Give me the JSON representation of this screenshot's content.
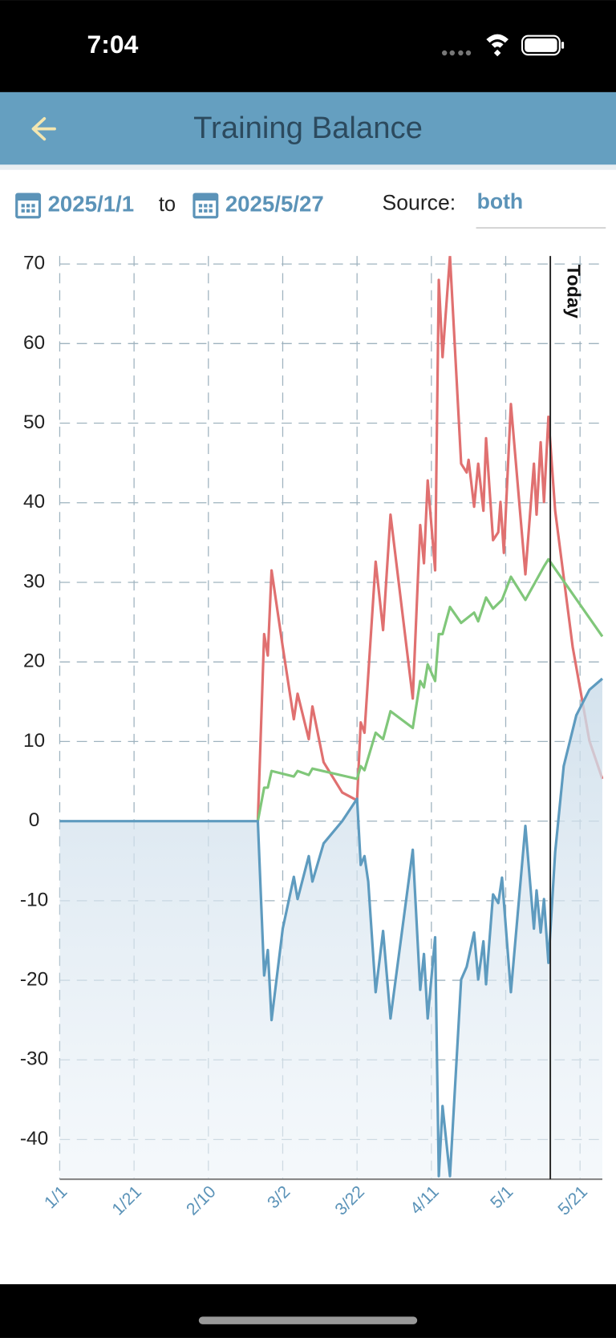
{
  "status_bar": {
    "time": "7:04"
  },
  "header": {
    "title": "Training Balance"
  },
  "filters": {
    "start_date": "2025/1/1",
    "to": "to",
    "end_date": "2025/5/27",
    "source_label": "Source:",
    "source": "both"
  },
  "chart_data": {
    "type": "line",
    "xlim": [
      0,
      146
    ],
    "xticks": [
      {
        "value": 0,
        "label": "1/1"
      },
      {
        "value": 20,
        "label": "1/21"
      },
      {
        "value": 40,
        "label": "2/10"
      },
      {
        "value": 60,
        "label": "3/2"
      },
      {
        "value": 80,
        "label": "3/22"
      },
      {
        "value": 100,
        "label": "4/11"
      },
      {
        "value": 120,
        "label": "5/1"
      },
      {
        "value": 140,
        "label": "5/21"
      }
    ],
    "ylim": [
      -45,
      71
    ],
    "yticks": [
      70,
      60,
      50,
      40,
      30,
      20,
      10,
      0,
      -10,
      -20,
      -30,
      -40
    ],
    "grid": true,
    "marker": {
      "x": 132,
      "label": "Today"
    },
    "series": [
      {
        "color": "#e07070",
        "x": [
          53.3,
          55,
          56,
          57,
          60,
          63,
          64,
          67,
          68,
          71,
          76,
          80,
          81,
          82,
          85,
          87,
          89,
          95,
          97,
          98,
          99,
          101,
          102,
          103,
          105,
          108,
          109.5,
          110,
          111.5,
          112.6,
          114,
          114.7,
          116.6,
          118,
          118.6,
          119.5,
          121.4,
          125.3,
          127.6,
          128.3,
          129.4,
          130.3,
          131.5,
          133.3,
          138,
          142.5,
          146
        ],
        "values": [
          0,
          23.5,
          20.8,
          31.5,
          21.9,
          12.8,
          16,
          10.3,
          14.4,
          7.4,
          3.6,
          2.6,
          12.4,
          11.1,
          32.6,
          24,
          38.5,
          15.4,
          37.2,
          32.4,
          42.8,
          31.5,
          68,
          58.3,
          71,
          44.9,
          43.8,
          45.4,
          39.5,
          44.9,
          39,
          48.1,
          35.3,
          36.3,
          40.1,
          33.7,
          52.4,
          31,
          44.9,
          38.5,
          47.6,
          40.1,
          50.8,
          39,
          21.9,
          10.1,
          5.3
        ]
      },
      {
        "color": "#80c77a",
        "x": [
          53.3,
          55,
          56,
          57,
          63,
          64,
          67,
          68,
          80,
          81,
          82,
          85,
          87,
          89,
          95,
          97,
          98,
          99,
          101,
          102,
          103,
          105,
          108,
          111.5,
          112.6,
          114.7,
          116.6,
          119,
          121.4,
          125.3,
          130.3,
          131.5,
          146
        ],
        "values": [
          0,
          4.2,
          4.2,
          6.3,
          5.6,
          6.3,
          5.8,
          6.6,
          5.3,
          6.9,
          6.4,
          11.1,
          10.3,
          13.8,
          11.7,
          17.6,
          16.8,
          19.7,
          17.6,
          23.5,
          23.5,
          26.9,
          24.9,
          26.2,
          25.1,
          28.1,
          26.7,
          27.8,
          30.7,
          27.8,
          32,
          32.9,
          23.2
        ]
      },
      {
        "color": "#5e9bbf",
        "area": true,
        "x": [
          0,
          53.3,
          55,
          56,
          57,
          60,
          63,
          64,
          67,
          68,
          71,
          76,
          80,
          81,
          82,
          83,
          85,
          87,
          89,
          95,
          97,
          98,
          99,
          101,
          102,
          103,
          105,
          108,
          109.5,
          111.5,
          112.6,
          114,
          114.7,
          116.6,
          118,
          119,
          121.4,
          125.3,
          127.6,
          128.3,
          129.4,
          130.3,
          131.5,
          133.3,
          135.6,
          139,
          142.5,
          146
        ],
        "values": [
          0,
          0,
          -19.4,
          -16.2,
          -25,
          -13.5,
          -7,
          -9.8,
          -4.4,
          -7.6,
          -2.8,
          0,
          2.8,
          -5.5,
          -4.4,
          -7.6,
          -21.5,
          -13.8,
          -24.8,
          -3.6,
          -21.2,
          -16.7,
          -24.8,
          -14.6,
          -44.6,
          -35.8,
          -44.6,
          -19.9,
          -18.3,
          -14,
          -19.9,
          -15.1,
          -20.5,
          -9.2,
          -10.3,
          -7.1,
          -21.5,
          -0.6,
          -13.5,
          -8.7,
          -14,
          -9.8,
          -17.8,
          -3.9,
          6.9,
          13.3,
          16.5,
          17.9
        ]
      }
    ]
  }
}
